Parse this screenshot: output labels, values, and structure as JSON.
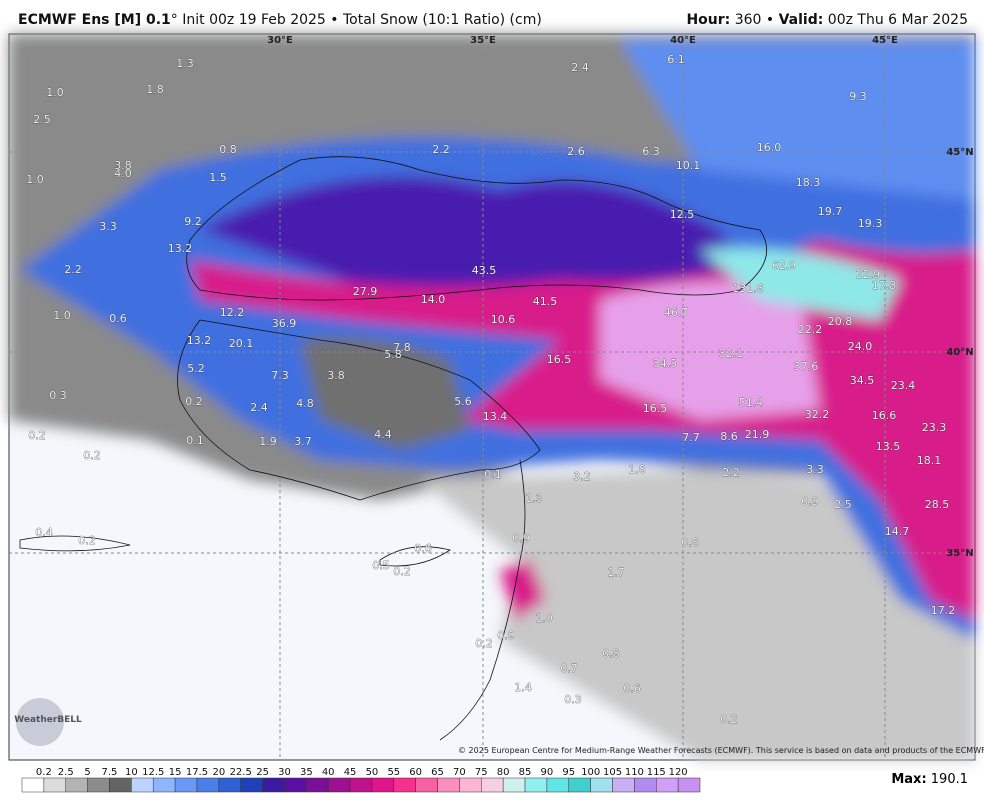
{
  "header": {
    "model": "ECMWF Ens [M] 0.1",
    "info": "° Init 00z 19 Feb 2025 • Total Snow (10:1 Ratio) (cm)",
    "hour_label": "Hour:",
    "hour": "360 •",
    "valid_label": "Valid:",
    "valid": "00z Thu 6 Mar 2025"
  },
  "grid_labels": [
    "30°E",
    "35°E",
    "40°E",
    "45°E",
    "45°N",
    "40°N",
    "35°N"
  ],
  "map_labels": [
    "1.3",
    "1.0",
    "1.8",
    "2.5",
    "0.8",
    "2.2",
    "2.6",
    "6.3",
    "10.1",
    "16.0",
    "18.3",
    "19.7",
    "19.3",
    "9.3",
    "6.1",
    "2.4",
    "3.8",
    "4.0",
    "1.0",
    "1.5",
    "9.2",
    "3.3",
    "13.2",
    "2.2",
    "12.5",
    "62.9",
    "22.9",
    "17.8",
    "43.5",
    "27.9",
    "14.0",
    "41.5",
    "46.7",
    "131.8",
    "22.2",
    "20.8",
    "24.0",
    "12.2",
    "36.9",
    "10.6",
    "1.0",
    "0.6",
    "13.2",
    "20.1",
    "5.8",
    "7.8",
    "16.5",
    "34.5",
    "32.1",
    "37.6",
    "34.5",
    "23.4",
    "5.2",
    "7.3",
    "3.8",
    "0.3",
    "0.2",
    "2.4",
    "4.8",
    "5.6",
    "13.4",
    "16.5",
    "51.4",
    "32.2",
    "16.6",
    "23.3",
    "0.2",
    "0.1",
    "1.9",
    "3.7",
    "4.4",
    "7.7",
    "8.6",
    "21.9",
    "13.5",
    "18.1",
    "0.2",
    "1.8",
    "2.2",
    "3.3",
    "3.2",
    "0.1",
    "1.3",
    "0.9",
    "2.5",
    "28.5",
    "0.4",
    "0.2",
    "0.9",
    "0.8",
    "14.7",
    "0.6",
    "0.5",
    "0.2",
    "1.7",
    "17.2",
    "1.0",
    "0.9",
    "0.2",
    "0.8",
    "0.7",
    "1.4",
    "0.6",
    "0.3",
    "0.2"
  ],
  "logo": "WeatherBELL",
  "copyright": "© 2025 European Centre for Medium-Range Weather Forecasts (ECMWF). This service is based on data and products of the ECMWF.",
  "colorbar": {
    "labels": [
      0.2,
      2.5,
      5,
      7.5,
      10,
      12.5,
      15,
      17.5,
      20,
      22.5,
      25,
      30,
      35,
      40,
      45,
      50,
      55,
      60,
      65,
      70,
      75,
      80,
      85,
      90,
      95,
      100,
      105,
      110,
      115,
      120
    ],
    "colors": [
      "#ffffff",
      "#dcdcdc",
      "#b4b4b4",
      "#8c8c8c",
      "#646464",
      "#bcd2ff",
      "#8fb5ff",
      "#6a98f5",
      "#4a7ee8",
      "#2f60d6",
      "#1f40b8",
      "#3a1aa0",
      "#5a0fa0",
      "#7a0f9a",
      "#9e1090",
      "#c0128a",
      "#e0158a",
      "#f5308f",
      "#f860a5",
      "#fa8fbe",
      "#fcb5d4",
      "#f5d0e2",
      "#d0f0f0",
      "#90f0ee",
      "#60e5e5",
      "#40d0d0",
      "#a0e0f0",
      "#c8b0f5",
      "#b08cf0",
      "#d0a0f8",
      "#c890f0"
    ]
  },
  "max_label": "Max:",
  "max_value": "190.1"
}
